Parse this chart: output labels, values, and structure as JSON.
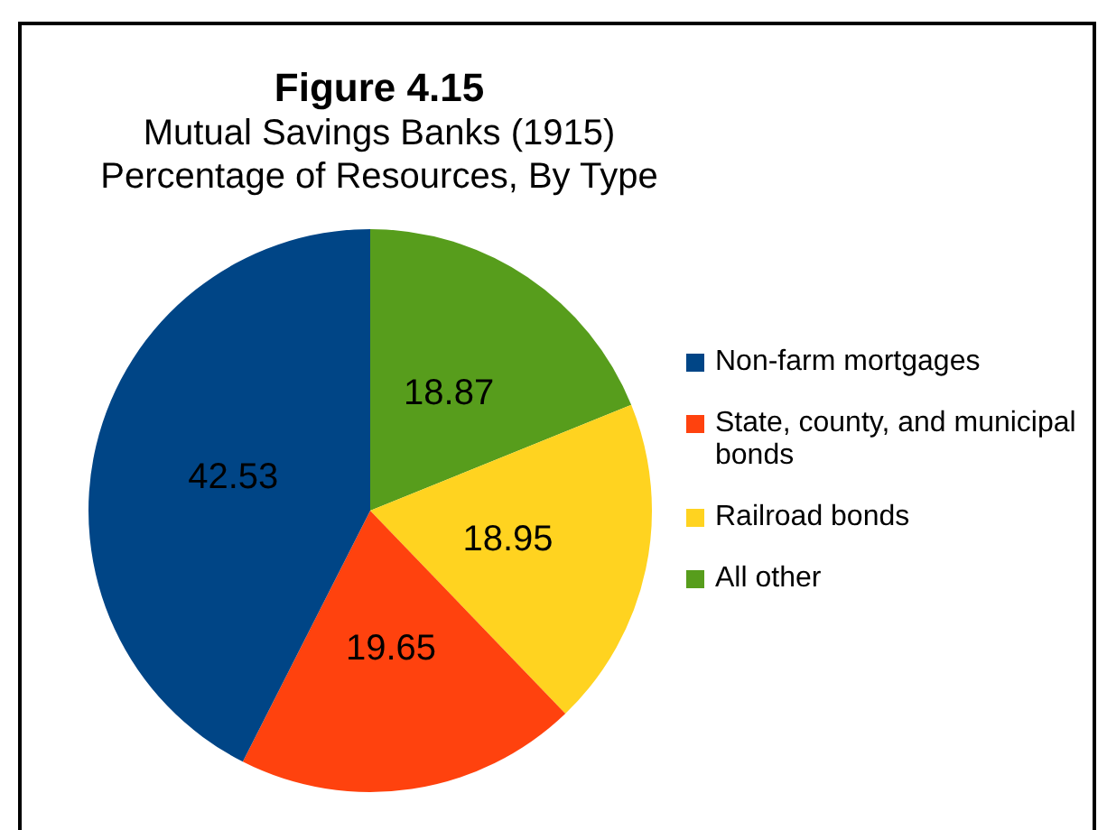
{
  "chart_data": {
    "type": "pie",
    "title": "Figure 4.15",
    "subtitle": "Mutual Savings Banks (1915) Percentage of Resources, By Type",
    "categories": [
      "Non-farm mortgages",
      "State, county, and municipal bonds",
      "Railroad bonds",
      "All other"
    ],
    "values": [
      42.53,
      19.65,
      18.95,
      18.87
    ],
    "colors": [
      "#004586",
      "#ff420e",
      "#ffd320",
      "#579d1c"
    ],
    "data_labels": true,
    "legend": "right"
  }
}
